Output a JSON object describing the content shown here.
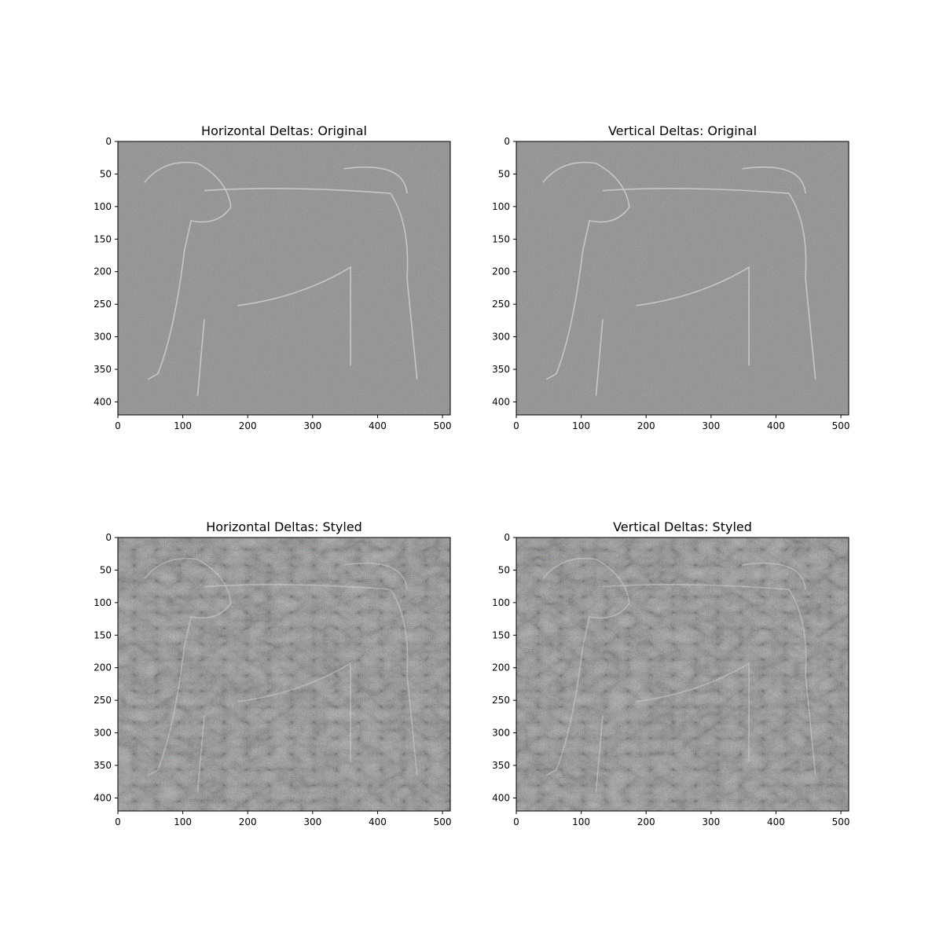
{
  "figure": {
    "background": "#ffffff",
    "panel_fill": "#838383",
    "outline_color": "#dcdcdc"
  },
  "chart_data": [
    {
      "type": "heatmap",
      "title": "Horizontal Deltas: Original",
      "xlim": [
        0,
        512
      ],
      "ylim": [
        420,
        0
      ],
      "xticks": [
        0,
        100,
        200,
        300,
        400,
        500
      ],
      "yticks": [
        0,
        50,
        100,
        150,
        200,
        250,
        300,
        350,
        400
      ],
      "grid": false,
      "texture": "light"
    },
    {
      "type": "heatmap",
      "title": "Vertical Deltas: Original",
      "xlim": [
        0,
        512
      ],
      "ylim": [
        420,
        0
      ],
      "xticks": [
        0,
        100,
        200,
        300,
        400,
        500
      ],
      "yticks": [
        0,
        50,
        100,
        150,
        200,
        250,
        300,
        350,
        400
      ],
      "grid": false,
      "texture": "light"
    },
    {
      "type": "heatmap",
      "title": "Horizontal Deltas: Styled",
      "xlim": [
        0,
        512
      ],
      "ylim": [
        420,
        0
      ],
      "xticks": [
        0,
        100,
        200,
        300,
        400,
        500
      ],
      "yticks": [
        0,
        50,
        100,
        150,
        200,
        250,
        300,
        350,
        400
      ],
      "grid": false,
      "texture": "heavy"
    },
    {
      "type": "heatmap",
      "title": "Vertical Deltas: Styled",
      "xlim": [
        0,
        512
      ],
      "ylim": [
        420,
        0
      ],
      "xticks": [
        0,
        100,
        200,
        300,
        400,
        500
      ],
      "yticks": [
        0,
        50,
        100,
        150,
        200,
        250,
        300,
        350,
        400
      ],
      "grid": false,
      "texture": "heavy"
    }
  ]
}
